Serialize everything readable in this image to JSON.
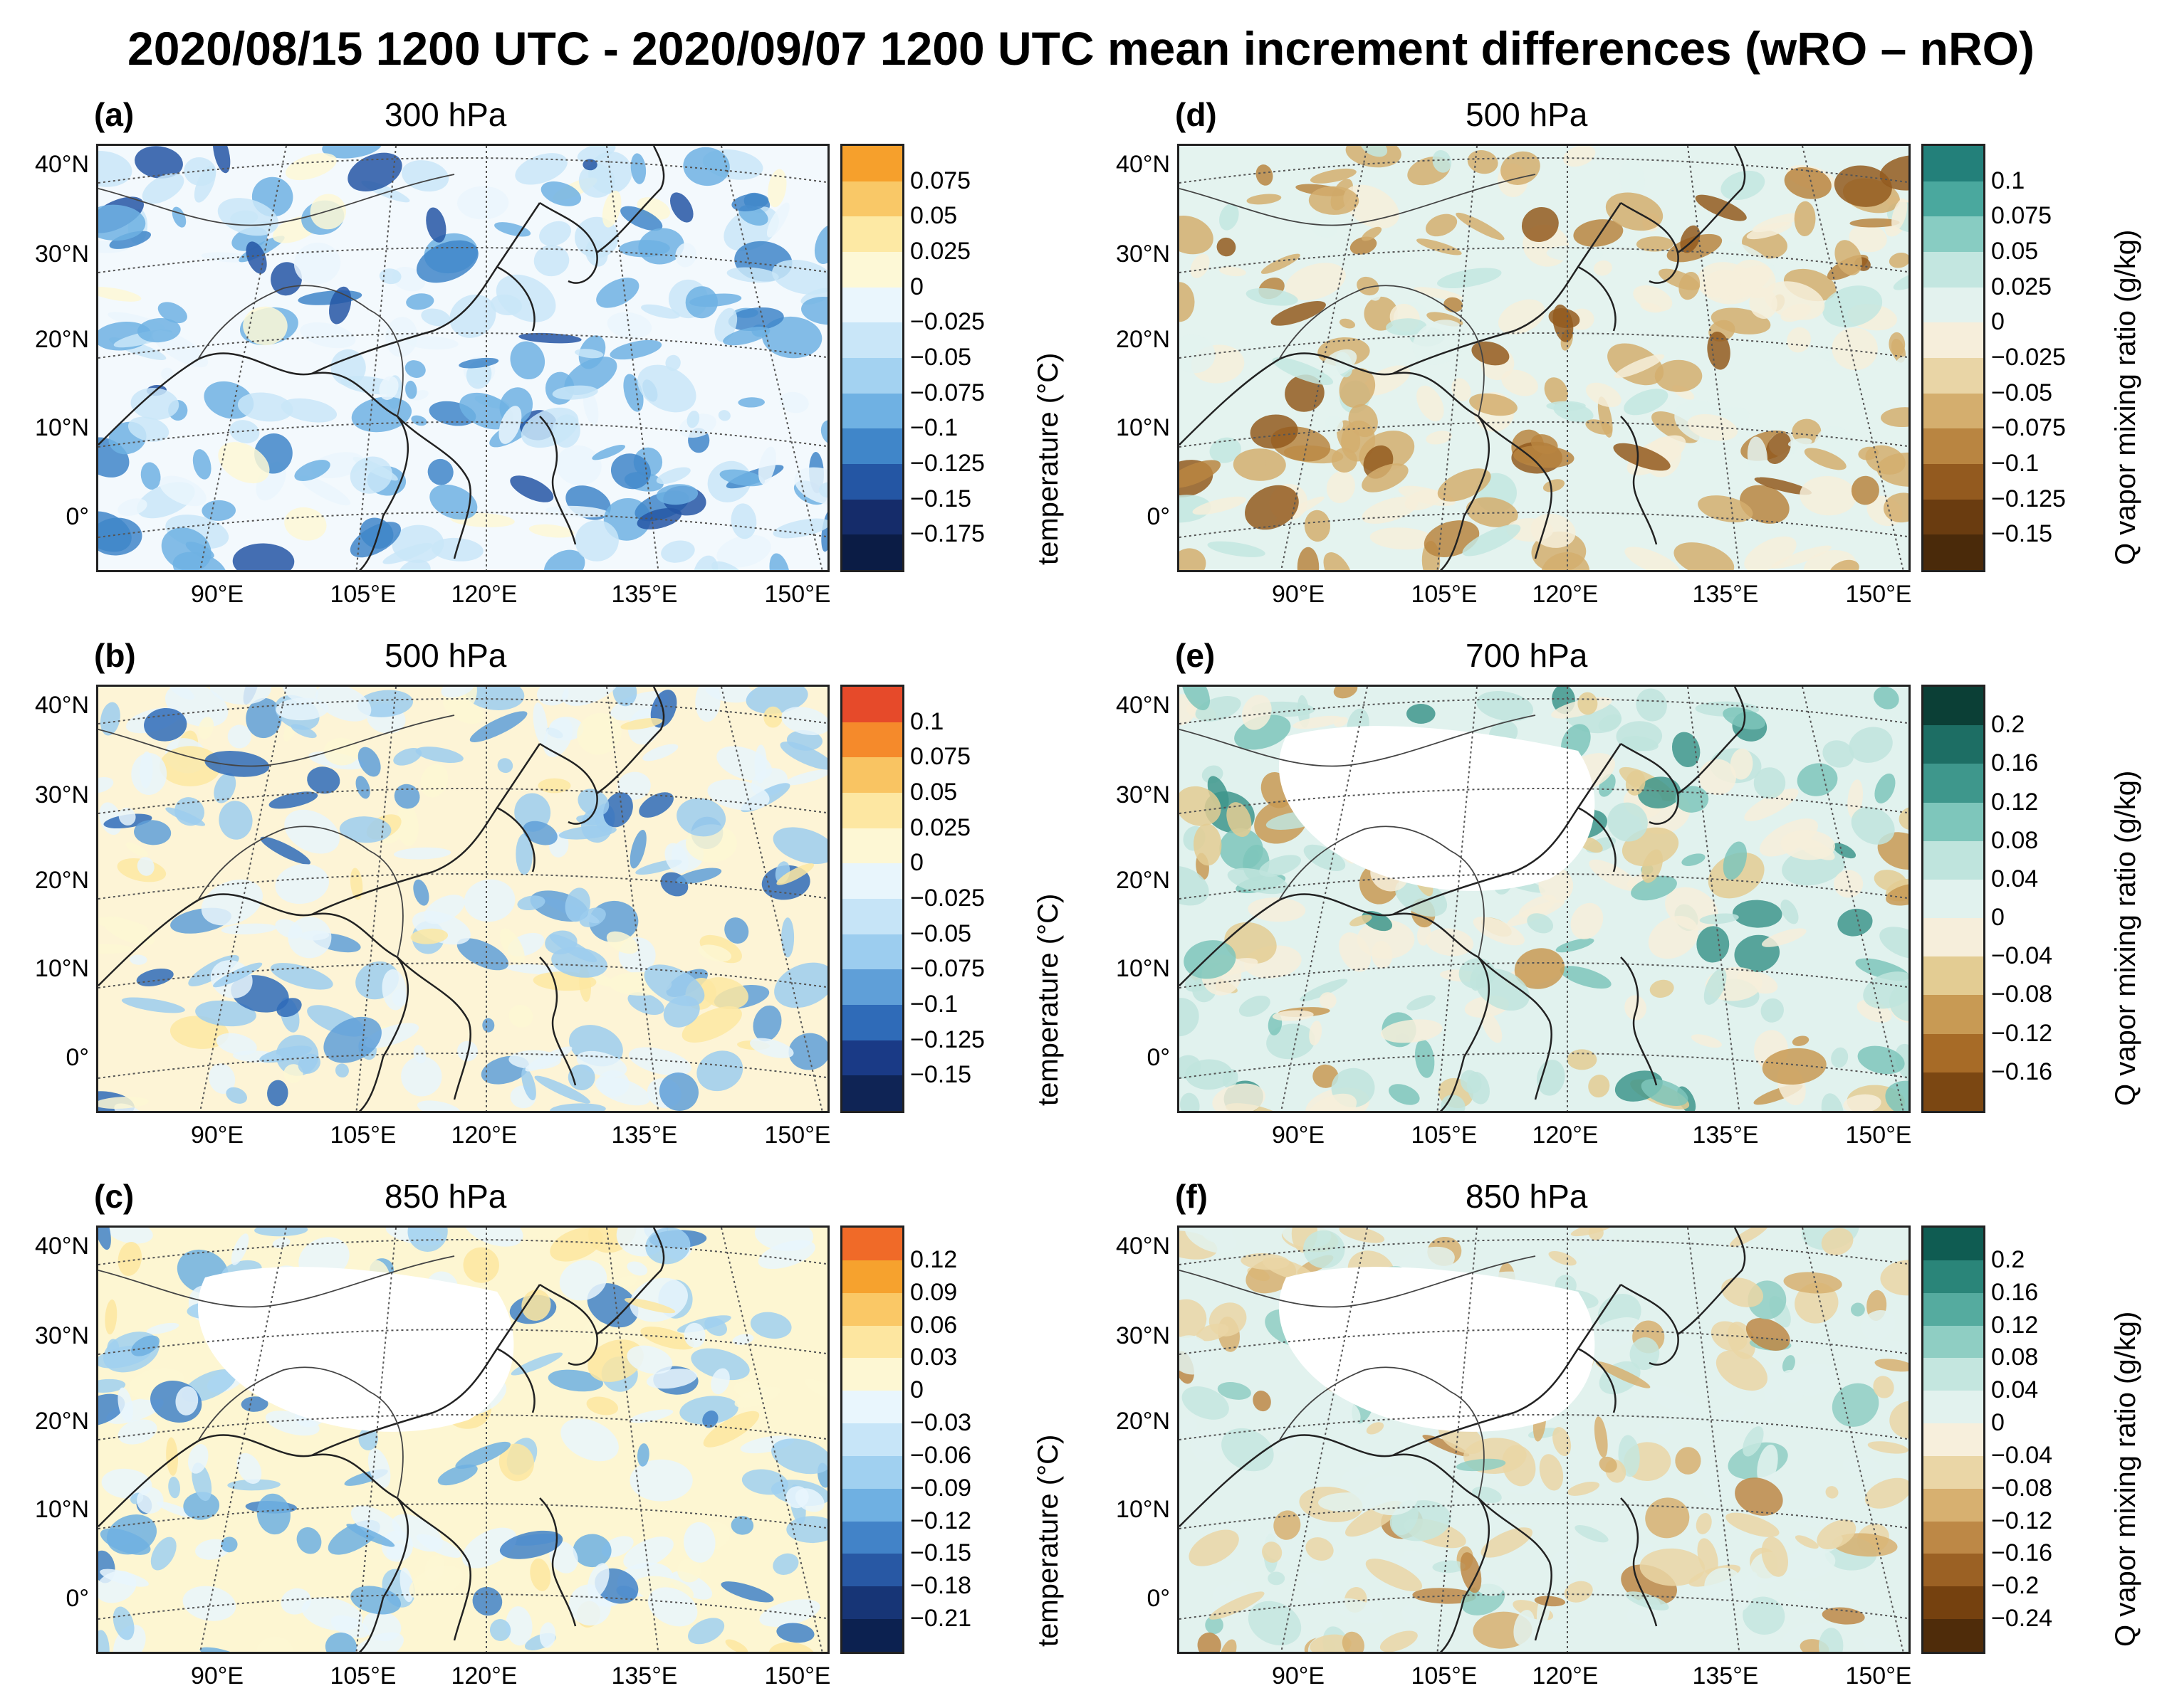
{
  "title": "2020/08/15 1200 UTC - 2020/09/07 1200 UTC  mean increment differences (wRO – nRO)",
  "lat_labels": [
    "40°N",
    "30°N",
    "20°N",
    "10°N",
    "0°"
  ],
  "lon_labels": [
    "90°E",
    "105°E",
    "120°E",
    "135°E",
    "150°E"
  ],
  "panels": [
    {
      "id": "a",
      "label": "(a)",
      "level": "300 hPa",
      "variable": "temperature",
      "cbar_title": "temperature (°C)",
      "ticks": [
        "0.075",
        "0.05",
        "0.025",
        "0",
        "−0.025",
        "−0.05",
        "−0.075",
        "−0.1",
        "−0.125",
        "−0.15",
        "−0.175"
      ],
      "colors": [
        "#f6a02c",
        "#f9c867",
        "#fde9a4",
        "#fdf8d6",
        "#eaf6fd",
        "#c9e6f8",
        "#a3d2f1",
        "#6fb1e3",
        "#4086c9",
        "#2456a4",
        "#152c6a",
        "#0b1c45"
      ],
      "background": "#f3f9fd"
    },
    {
      "id": "b",
      "label": "(b)",
      "level": "500 hPa",
      "variable": "temperature",
      "cbar_title": "temperature (°C)",
      "ticks": [
        "0.1",
        "0.075",
        "0.05",
        "0.025",
        "0",
        "−0.025",
        "−0.05",
        "−0.075",
        "−0.1",
        "−0.125",
        "−0.15"
      ],
      "colors": [
        "#e64a2a",
        "#f58a2b",
        "#f9c462",
        "#fde7a2",
        "#fdf7d4",
        "#e8f5fc",
        "#c6e4f7",
        "#9ccdef",
        "#5f9fd8",
        "#2f6bb8",
        "#1a3a86",
        "#0f2455"
      ],
      "background": "#fdf4d6"
    },
    {
      "id": "c",
      "label": "(c)",
      "level": "850 hPa",
      "variable": "temperature",
      "cbar_title": "temperature (°C)",
      "ticks": [
        "0.12",
        "0.09",
        "0.06",
        "0.03",
        "0",
        "−0.03",
        "−0.06",
        "−0.09",
        "−0.12",
        "−0.15",
        "−0.18",
        "−0.21"
      ],
      "colors": [
        "#f06a28",
        "#f6a22e",
        "#fac866",
        "#fde6a0",
        "#fdf7d3",
        "#e9f6fd",
        "#c7e5f8",
        "#a0d0f0",
        "#6fb0e2",
        "#4283c8",
        "#2858a4",
        "#173576",
        "#0c2150"
      ],
      "background": "#fdf6d2"
    },
    {
      "id": "d",
      "label": "(d)",
      "level": "500 hPa",
      "variable": "Q vapor mixing ratio",
      "cbar_title": "Q vapor mixing ratio (g/kg)",
      "ticks": [
        "0.1",
        "0.075",
        "0.05",
        "0.025",
        "0",
        "−0.025",
        "−0.05",
        "−0.075",
        "−0.1",
        "−0.125",
        "−0.15"
      ],
      "colors": [
        "#23807a",
        "#4aa89e",
        "#88ccc2",
        "#c3e6e0",
        "#e3f2ee",
        "#f6eedb",
        "#e9d5a6",
        "#d4ae6e",
        "#b98541",
        "#935a1f",
        "#6a3c10",
        "#4a2a0a"
      ],
      "background": "#e4f3ef"
    },
    {
      "id": "e",
      "label": "(e)",
      "level": "700 hPa",
      "variable": "Q vapor mixing ratio",
      "cbar_title": "Q vapor mixing ratio (g/kg)",
      "ticks": [
        "0.2",
        "0.16",
        "0.12",
        "0.08",
        "0.04",
        "0",
        "−0.04",
        "−0.08",
        "−0.12",
        "−0.16"
      ],
      "colors": [
        "#0b3f36",
        "#1d6e64",
        "#3e978c",
        "#7ec6bb",
        "#bfe4dd",
        "#e1f2ee",
        "#f6eedb",
        "#e3cc93",
        "#c89a54",
        "#a76b27",
        "#7b4712"
      ],
      "background": "#e1f2ee"
    },
    {
      "id": "f",
      "label": "(f)",
      "level": "850 hPa",
      "variable": "Q vapor mixing ratio",
      "cbar_title": "Q vapor mixing ratio (g/kg)",
      "ticks": [
        "0.2",
        "0.16",
        "0.12",
        "0.08",
        "0.04",
        "0",
        "−0.04",
        "−0.08",
        "−0.12",
        "−0.16",
        "−0.2",
        "−0.24"
      ],
      "colors": [
        "#0f5c52",
        "#2a8579",
        "#55ab9f",
        "#8fcec3",
        "#c4e6df",
        "#e2f2ee",
        "#f7efdc",
        "#ead6a6",
        "#d7b070",
        "#bd8846",
        "#9b6124",
        "#75410f",
        "#4f2c0a"
      ],
      "background": "#e2f2ee"
    }
  ]
}
